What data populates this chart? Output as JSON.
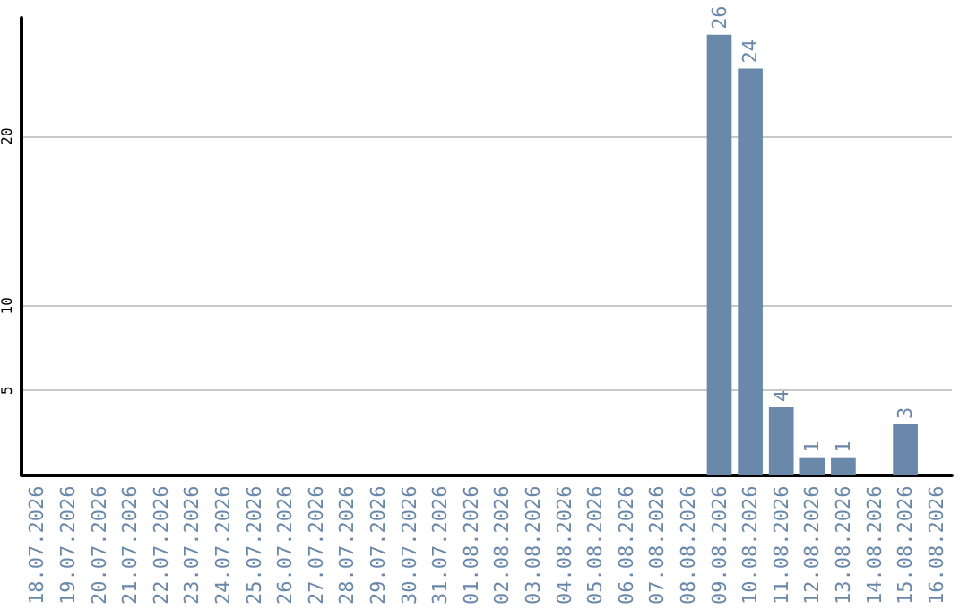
{
  "chart_data": {
    "type": "bar",
    "categories": [
      "18.07.2026",
      "19.07.2026",
      "20.07.2026",
      "21.07.2026",
      "22.07.2026",
      "23.07.2026",
      "24.07.2026",
      "25.07.2026",
      "26.07.2026",
      "27.07.2026",
      "28.07.2026",
      "29.07.2026",
      "30.07.2026",
      "31.07.2026",
      "01.08.2026",
      "02.08.2026",
      "03.08.2026",
      "04.08.2026",
      "05.08.2026",
      "06.08.2026",
      "07.08.2026",
      "08.08.2026",
      "09.08.2026",
      "10.08.2026",
      "11.08.2026",
      "12.08.2026",
      "13.08.2026",
      "14.08.2026",
      "15.08.2026",
      "16.08.2026"
    ],
    "values": [
      0,
      0,
      0,
      0,
      0,
      0,
      0,
      0,
      0,
      0,
      0,
      0,
      0,
      0,
      0,
      0,
      0,
      0,
      0,
      0,
      0,
      0,
      26,
      24,
      4,
      1,
      1,
      0,
      3,
      0
    ],
    "value_labels": [
      null,
      null,
      null,
      null,
      null,
      null,
      null,
      null,
      null,
      null,
      null,
      null,
      null,
      null,
      null,
      null,
      null,
      null,
      null,
      null,
      null,
      null,
      "26",
      "24",
      "4",
      "1",
      "1",
      null,
      "3",
      null
    ],
    "color": "#6a89aa",
    "ylim": [
      0,
      27
    ],
    "yticks": [
      5,
      10,
      20
    ],
    "grid": "y"
  }
}
